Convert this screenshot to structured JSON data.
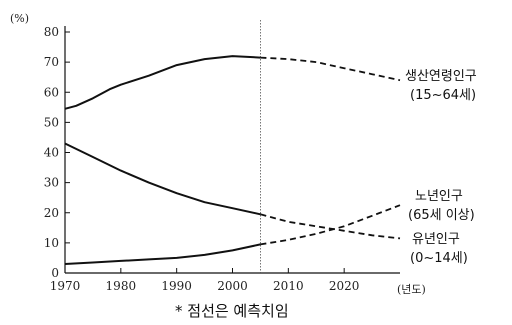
{
  "chart_data": {
    "type": "line",
    "title": "",
    "ylabel": "(%)",
    "xlabel": "(년도)",
    "xlim": [
      1970,
      2030
    ],
    "ylim": [
      0,
      80
    ],
    "x_ticks": [
      1970,
      1980,
      1990,
      2000,
      2010,
      2020
    ],
    "x_tick_labels": [
      "1970",
      "1980",
      "1990",
      "2000",
      "2010",
      "2020"
    ],
    "y_ticks": [
      0,
      10,
      20,
      30,
      40,
      50,
      60,
      70,
      80
    ],
    "y_tick_labels": [
      "0",
      "10",
      "20",
      "30",
      "40",
      "50",
      "60",
      "70",
      "80"
    ],
    "grid": false,
    "projection_start_year": 2005,
    "series": [
      {
        "name": "생산연령인구",
        "subname": "(15~64세)",
        "x": [
          1970,
          1972,
          1975,
          1978,
          1980,
          1985,
          1990,
          1995,
          2000,
          2005,
          2010,
          2015,
          2020,
          2025,
          2030
        ],
        "y": [
          54.5,
          55.5,
          58,
          61,
          62.5,
          65.5,
          69,
          71,
          72,
          71.5,
          71,
          70,
          68,
          66,
          64
        ],
        "projected_from": 2005
      },
      {
        "name": "노년인구",
        "subname": "(65세 이상)",
        "x": [
          1970,
          1975,
          1980,
          1985,
          1990,
          1995,
          2000,
          2005,
          2010,
          2015,
          2020,
          2025,
          2030
        ],
        "y": [
          3,
          3.5,
          4,
          4.5,
          5,
          6,
          7.5,
          9.5,
          11,
          13,
          15.5,
          19,
          22.5
        ],
        "projected_from": 2005
      },
      {
        "name": "유년인구",
        "subname": "(0~14세)",
        "x": [
          1970,
          1975,
          1980,
          1985,
          1990,
          1995,
          2000,
          2005,
          2010,
          2015,
          2020,
          2025,
          2030
        ],
        "y": [
          43,
          38.5,
          34,
          30,
          26.5,
          23.5,
          21.5,
          19.5,
          17,
          15.5,
          14,
          12.5,
          11.5
        ],
        "projected_from": 2005
      }
    ],
    "annotations": [
      "* 점선은 예측치임"
    ]
  }
}
